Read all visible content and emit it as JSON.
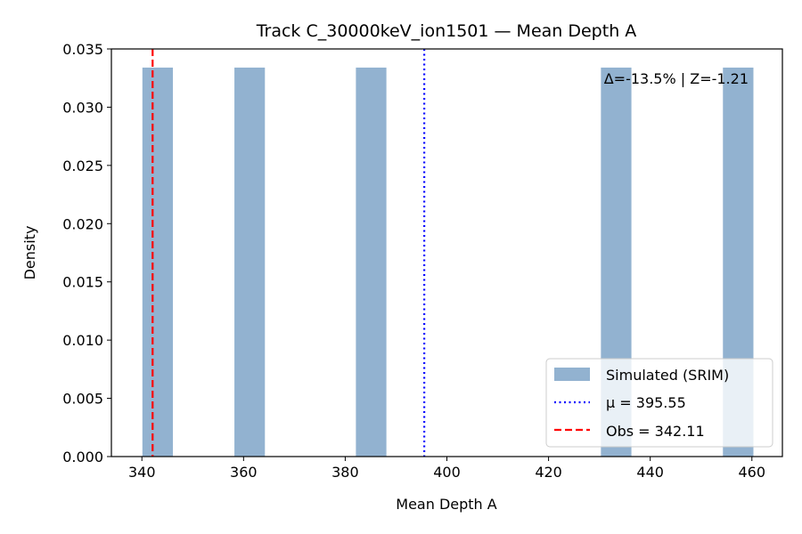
{
  "chart_data": {
    "type": "bar",
    "title": "Track C_30000keV_ion1501 — Mean Depth A",
    "xlabel": "Mean Depth A",
    "ylabel": "Density",
    "xlim": [
      334,
      466
    ],
    "ylim": [
      0,
      0.035
    ],
    "x_ticks": [
      "340",
      "360",
      "380",
      "400",
      "420",
      "440",
      "460"
    ],
    "y_ticks": [
      "0.000",
      "0.005",
      "0.010",
      "0.015",
      "0.020",
      "0.025",
      "0.030",
      "0.035"
    ],
    "bins": [
      {
        "start": 340.1,
        "end": 346.1,
        "density": 0.0334
      },
      {
        "start": 358.2,
        "end": 364.2,
        "density": 0.0334
      },
      {
        "start": 382.1,
        "end": 388.1,
        "density": 0.0334
      },
      {
        "start": 430.3,
        "end": 436.3,
        "density": 0.0334
      },
      {
        "start": 454.3,
        "end": 460.3,
        "density": 0.0334
      }
    ],
    "bar_color": "#92b2d0",
    "mean_line": {
      "value": 395.55,
      "label": "μ = 395.55",
      "color": "#0000ff",
      "style": "dotted"
    },
    "obs_line": {
      "value": 342.11,
      "label": "Obs = 342.11",
      "color": "#ff0000",
      "style": "dashed"
    },
    "series_label": "Simulated (SRIM)",
    "annotation": "Δ=-13.5% | Z=-1.21",
    "legend_position": "lower-right",
    "grid": false
  }
}
